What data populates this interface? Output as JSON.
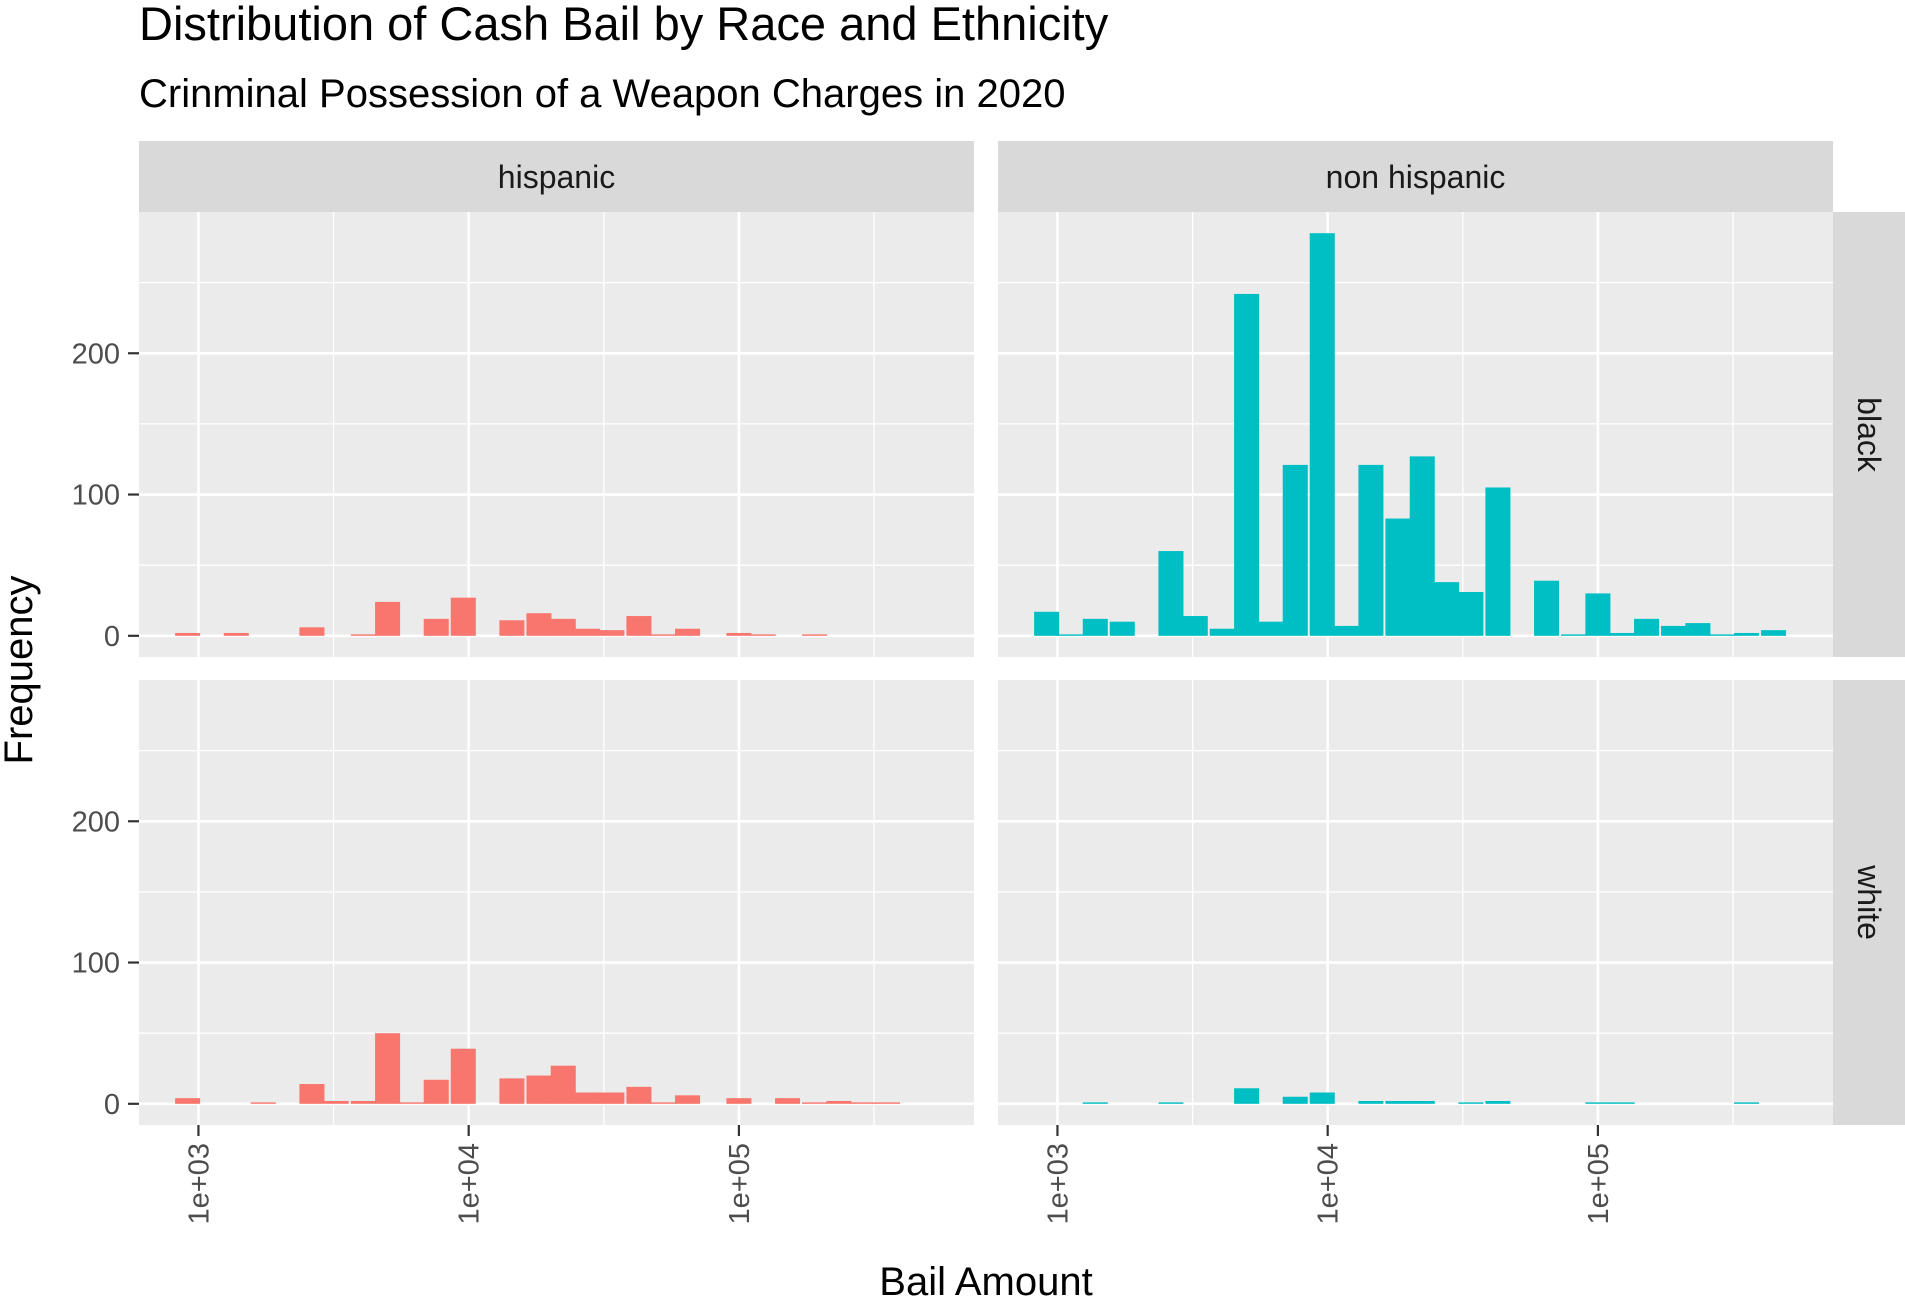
{
  "chart_data": {
    "type": "bar",
    "subtype": "faceted-histogram",
    "title": "Distribution of Cash Bail by Race and Ethnicity",
    "subtitle": "Crinminal Possession of a Weapon Charges in 2020",
    "xlabel": "Bail Amount",
    "ylabel": "Frequency",
    "x_scale": "log10",
    "x_ticks": [
      {
        "value": 1000,
        "label": "1e+03"
      },
      {
        "value": 10000,
        "label": "1e+04"
      },
      {
        "value": 100000,
        "label": "1e+05"
      }
    ],
    "y_ticks": [
      {
        "value": 0,
        "label": "0"
      },
      {
        "value": 100,
        "label": "100"
      },
      {
        "value": 200,
        "label": "200"
      }
    ],
    "ylim": [
      -15,
      300
    ],
    "xlim_log10": [
      2.78,
      5.87
    ],
    "grid": true,
    "legend": "none",
    "facet_columns": [
      "hispanic",
      "non hispanic"
    ],
    "facet_rows": [
      "black",
      "white"
    ],
    "colors": {
      "hispanic": "#F8766D",
      "non hispanic": "#00BFC4",
      "panel_bg": "#EBEBEB",
      "strip_bg": "#D9D9D9"
    },
    "bin_width_log10": 0.0926,
    "panels": [
      {
        "column": "hispanic",
        "row": "black",
        "bins": [
          {
            "x": 2.96,
            "count": 2
          },
          {
            "x": 3.14,
            "count": 2
          },
          {
            "x": 3.42,
            "count": 6
          },
          {
            "x": 3.61,
            "count": 1
          },
          {
            "x": 3.7,
            "count": 24
          },
          {
            "x": 3.88,
            "count": 12
          },
          {
            "x": 3.98,
            "count": 27
          },
          {
            "x": 4.16,
            "count": 11
          },
          {
            "x": 4.26,
            "count": 16
          },
          {
            "x": 4.35,
            "count": 12
          },
          {
            "x": 4.44,
            "count": 5
          },
          {
            "x": 4.53,
            "count": 4
          },
          {
            "x": 4.63,
            "count": 14
          },
          {
            "x": 4.72,
            "count": 1
          },
          {
            "x": 4.81,
            "count": 5
          },
          {
            "x": 5.0,
            "count": 2
          },
          {
            "x": 5.09,
            "count": 1
          },
          {
            "x": 5.28,
            "count": 1
          }
        ]
      },
      {
        "column": "non hispanic",
        "row": "black",
        "bins": [
          {
            "x": 2.96,
            "count": 17
          },
          {
            "x": 3.05,
            "count": 1
          },
          {
            "x": 3.14,
            "count": 12
          },
          {
            "x": 3.24,
            "count": 10
          },
          {
            "x": 3.42,
            "count": 60
          },
          {
            "x": 3.51,
            "count": 14
          },
          {
            "x": 3.61,
            "count": 5
          },
          {
            "x": 3.7,
            "count": 242
          },
          {
            "x": 3.79,
            "count": 10
          },
          {
            "x": 3.88,
            "count": 121
          },
          {
            "x": 3.98,
            "count": 285
          },
          {
            "x": 4.07,
            "count": 7
          },
          {
            "x": 4.16,
            "count": 121
          },
          {
            "x": 4.26,
            "count": 83
          },
          {
            "x": 4.35,
            "count": 127
          },
          {
            "x": 4.44,
            "count": 38
          },
          {
            "x": 4.53,
            "count": 31
          },
          {
            "x": 4.63,
            "count": 105
          },
          {
            "x": 4.81,
            "count": 39
          },
          {
            "x": 4.91,
            "count": 1
          },
          {
            "x": 5.0,
            "count": 30
          },
          {
            "x": 5.09,
            "count": 2
          },
          {
            "x": 5.18,
            "count": 12
          },
          {
            "x": 5.28,
            "count": 7
          },
          {
            "x": 5.37,
            "count": 9
          },
          {
            "x": 5.46,
            "count": 1
          },
          {
            "x": 5.55,
            "count": 2
          },
          {
            "x": 5.65,
            "count": 4
          }
        ]
      },
      {
        "column": "hispanic",
        "row": "white",
        "bins": [
          {
            "x": 2.96,
            "count": 4
          },
          {
            "x": 3.24,
            "count": 1
          },
          {
            "x": 3.42,
            "count": 14
          },
          {
            "x": 3.51,
            "count": 2
          },
          {
            "x": 3.61,
            "count": 2
          },
          {
            "x": 3.7,
            "count": 50
          },
          {
            "x": 3.79,
            "count": 1
          },
          {
            "x": 3.88,
            "count": 17
          },
          {
            "x": 3.98,
            "count": 39
          },
          {
            "x": 4.16,
            "count": 18
          },
          {
            "x": 4.26,
            "count": 20
          },
          {
            "x": 4.35,
            "count": 27
          },
          {
            "x": 4.44,
            "count": 8
          },
          {
            "x": 4.53,
            "count": 8
          },
          {
            "x": 4.63,
            "count": 12
          },
          {
            "x": 4.72,
            "count": 1
          },
          {
            "x": 4.81,
            "count": 6
          },
          {
            "x": 5.0,
            "count": 4
          },
          {
            "x": 5.18,
            "count": 4
          },
          {
            "x": 5.28,
            "count": 1
          },
          {
            "x": 5.37,
            "count": 2
          },
          {
            "x": 5.46,
            "count": 1
          },
          {
            "x": 5.55,
            "count": 1
          }
        ]
      },
      {
        "column": "non hispanic",
        "row": "white",
        "bins": [
          {
            "x": 3.14,
            "count": 1
          },
          {
            "x": 3.42,
            "count": 1
          },
          {
            "x": 3.7,
            "count": 11
          },
          {
            "x": 3.88,
            "count": 5
          },
          {
            "x": 3.98,
            "count": 8
          },
          {
            "x": 4.16,
            "count": 2
          },
          {
            "x": 4.26,
            "count": 2
          },
          {
            "x": 4.35,
            "count": 2
          },
          {
            "x": 4.53,
            "count": 1
          },
          {
            "x": 4.63,
            "count": 2
          },
          {
            "x": 5.0,
            "count": 1
          },
          {
            "x": 5.09,
            "count": 1
          },
          {
            "x": 5.55,
            "count": 1
          }
        ]
      }
    ]
  }
}
